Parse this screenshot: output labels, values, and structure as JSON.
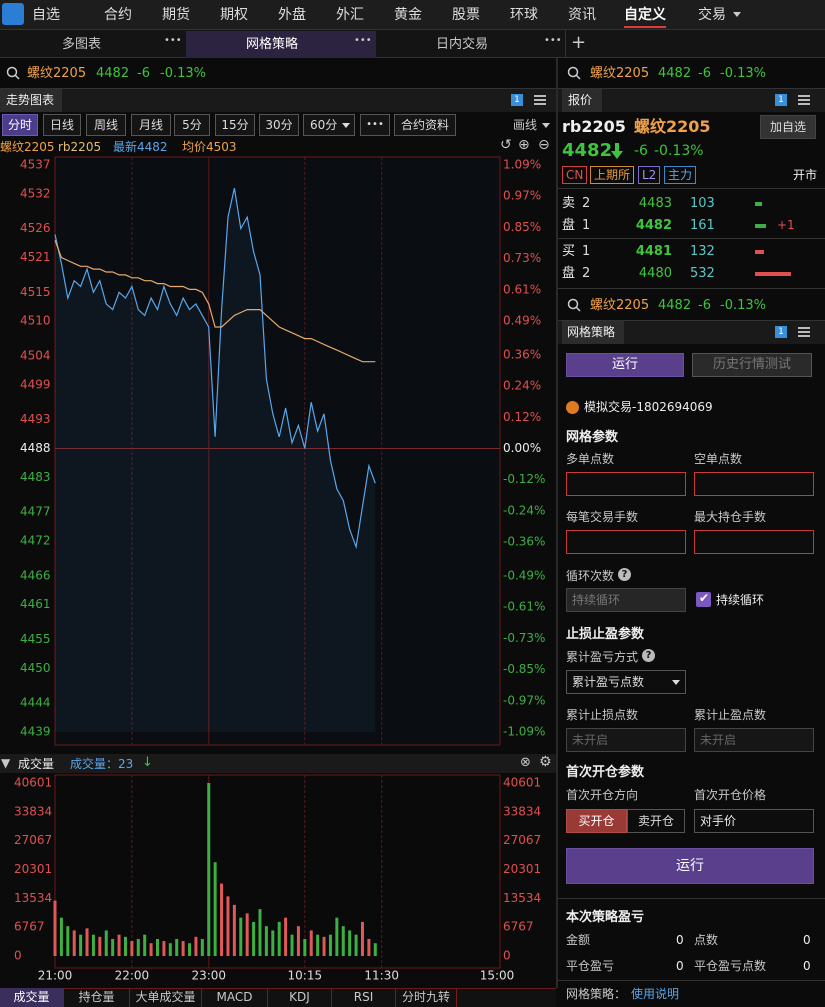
{
  "nav": {
    "items": [
      "自选",
      "合约",
      "期货",
      "期权",
      "外盘",
      "外汇",
      "黄金",
      "股票",
      "环球",
      "资讯",
      "自定义",
      "交易"
    ]
  },
  "tabs": [
    "多图表",
    "网格策略",
    "日内交易"
  ],
  "quote": {
    "name": "螺纹2205",
    "price": "4482",
    "change": "-6",
    "pct": "-0.13%"
  },
  "left_panel": {
    "title": "走势图表",
    "badge": "1",
    "periods": [
      "分时",
      "日线",
      "周线",
      "月线",
      "5分",
      "15分",
      "30分",
      "60分"
    ],
    "more": "•••",
    "info_btn": "合约资料",
    "draw": "画线",
    "info": {
      "name": "螺纹2205",
      "code": "rb2205",
      "last": "最新4482",
      "avg": "均价4503"
    }
  },
  "price_chart": {
    "type": "line",
    "xticks": [
      "21:00",
      "22:00",
      "23:00",
      "10:15",
      "11:30",
      "15:00"
    ],
    "ylim": [
      4439,
      4537
    ],
    "yticks": [
      4537,
      4532,
      4526,
      4521,
      4515,
      4510,
      4504,
      4499,
      4493,
      4488,
      4483,
      4477,
      4472,
      4466,
      4461,
      4455,
      4450,
      4444,
      4439
    ],
    "y2lim": [
      -1.09,
      1.09
    ],
    "y2ticks": [
      {
        "value": 1.09,
        "label": "1.09%"
      },
      {
        "value": 0.97,
        "label": "0.97%"
      },
      {
        "value": 0.85,
        "label": "0.85%"
      },
      {
        "value": 0.73,
        "label": "0.73%"
      },
      {
        "value": 0.61,
        "label": "0.61%"
      },
      {
        "value": 0.49,
        "label": "0.49%"
      },
      {
        "value": 0.36,
        "label": "0.36%"
      },
      {
        "value": 0.24,
        "label": "0.24%"
      },
      {
        "value": 0.12,
        "label": "0.12%"
      },
      {
        "value": 0,
        "label": "0.00%"
      },
      {
        "value": -0.12,
        "label": "-0.12%"
      },
      {
        "value": -0.24,
        "label": "-0.24%"
      },
      {
        "value": -0.36,
        "label": "-0.36%"
      },
      {
        "value": -0.49,
        "label": "-0.49%"
      },
      {
        "value": -0.61,
        "label": "-0.61%"
      },
      {
        "value": -0.73,
        "label": "-0.73%"
      },
      {
        "value": -0.85,
        "label": "-0.85%"
      },
      {
        "value": -0.97,
        "label": "-0.97%"
      },
      {
        "value": -1.09,
        "label": "-1.09%"
      }
    ],
    "series": [
      {
        "color": "#5aa6ea",
        "values": [
          4525,
          4520,
          4514,
          4517,
          4516,
          4519,
          4515,
          4517,
          4513,
          4512,
          4515,
          4514,
          4516,
          4512,
          4511,
          4514,
          4512,
          4516,
          4513,
          4511,
          4514,
          4512,
          4513,
          4511,
          4509,
          4490,
          4512,
          4528,
          4533,
          4526,
          4528,
          4522,
          4518,
          4500,
          4494,
          4490,
          4495,
          4489,
          4492,
          4488,
          4496,
          4491,
          4494,
          4486,
          4481,
          4479,
          4474,
          4471,
          4478,
          4485,
          4482
        ]
      },
      {
        "color": "#e8a868",
        "values": [
          4524,
          4521,
          4520.5,
          4520,
          4519.5,
          4519.5,
          4519,
          4519,
          4518.5,
          4518.5,
          4518,
          4518,
          4517.5,
          4517.5,
          4517,
          4517,
          4516.5,
          4516.5,
          4516,
          4516,
          4516,
          4515.5,
          4515.5,
          4515,
          4513,
          4509,
          4509,
          4510,
          4511,
          4511.5,
          4512,
          4512,
          4512,
          4511,
          4510,
          4509,
          4508.5,
          4508,
          4507.5,
          4507,
          4507,
          4506.5,
          4506,
          4505.5,
          4505,
          4504.5,
          4504,
          4503.5,
          4503,
          4503,
          4503
        ]
      }
    ]
  },
  "volume_chart": {
    "type": "bar",
    "title": "成交量",
    "current": "成交量：23",
    "up_color": "#e05858",
    "down_color": "#3cb043",
    "ylim": [
      0,
      40601
    ],
    "yticks": [
      40601,
      33834,
      27067,
      20301,
      13534,
      6767,
      0
    ],
    "values": [
      13000,
      9000,
      7000,
      6000,
      5000,
      6500,
      5000,
      4500,
      6000,
      4000,
      5000,
      4500,
      3500,
      4000,
      5000,
      3000,
      4000,
      3500,
      3000,
      4000,
      3500,
      3000,
      4500,
      4000,
      40601,
      22000,
      17000,
      14000,
      12000,
      9000,
      10000,
      8000,
      11000,
      7000,
      6000,
      8000,
      9000,
      5000,
      7000,
      4000,
      6000,
      5000,
      4500,
      5000,
      9000,
      7000,
      6000,
      5000,
      8000,
      4000,
      3000
    ]
  },
  "bottom_tabs": [
    "成交量",
    "持仓量",
    "大单成交量",
    "MACD",
    "KDJ",
    "RSI",
    "分时九转"
  ],
  "right_quote": {
    "title": "报价",
    "badge": "1",
    "code": "rb2205",
    "name": "螺纹2205",
    "add": "加自选",
    "price": "4482",
    "change": "-6",
    "pct": "-0.13%",
    "tags": [
      "CN",
      "上期所",
      "L2",
      "主力"
    ],
    "status": "开市",
    "sell_label": [
      "卖",
      "盘"
    ],
    "buy_label": [
      "买",
      "盘"
    ],
    "asks": [
      {
        "level": "2",
        "price": "4483",
        "volume": 103
      },
      {
        "level": "1",
        "price": "4482",
        "volume": 161,
        "delta": "+1"
      }
    ],
    "bids": [
      {
        "level": "1",
        "price": "4481",
        "volume": 132
      },
      {
        "level": "2",
        "price": "4480",
        "volume": 532
      }
    ]
  },
  "grid": {
    "title": "网格策略",
    "badge": "1",
    "run": "运行",
    "backtest": "历史行情测试",
    "account": "模拟交易-1802694069",
    "params_title": "网格参数",
    "long_pts": "多单点数",
    "short_pts": "空单点数",
    "lots": "每笔交易手数",
    "max_lots": "最大持仓手数",
    "cycles": "循环次数",
    "cycles_placeholder": "持续循环",
    "continuous": "持续循环",
    "sl_title": "止损止盈参数",
    "pl_mode": "累计盈亏方式",
    "pl_mode_value": "累计盈亏点数",
    "sl_pts": "累计止损点数",
    "tp_pts": "累计止盈点数",
    "off": "未开启",
    "open_title": "首次开仓参数",
    "open_dir": "首次开仓方向",
    "open_price": "首次开仓价格",
    "buy_open": "买开仓",
    "sell_open": "卖开仓",
    "price_type": "对手价",
    "run_big": "运行",
    "pnl_title": "本次策略盈亏",
    "amount": "金额",
    "amount_value": "0",
    "points": "点数",
    "points_value": "0",
    "close_pnl": "平仓盈亏",
    "close_pnl_value": "0",
    "close_pts": "平仓盈亏点数",
    "close_pts_value": "0",
    "footer": "网格策略：",
    "help": "使用说明"
  }
}
